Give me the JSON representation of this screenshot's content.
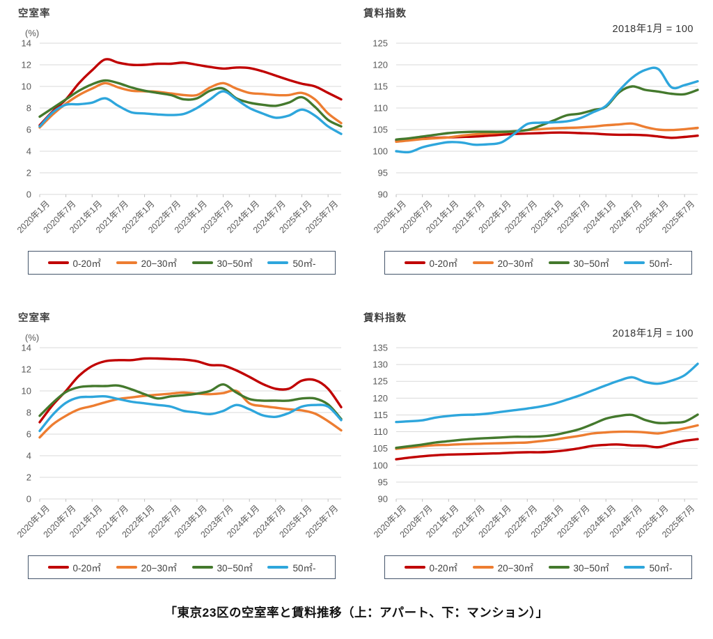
{
  "caption": "「東京23区の空室率と賃料推移（上：アパート、下：マンション）」",
  "colors": {
    "series_red": "#c00000",
    "series_orange": "#ed7d31",
    "series_green": "#44792d",
    "series_blue": "#2ea6dc",
    "gridline": "#d9d9d9",
    "tick": "#bfbfbf",
    "axis_label": "#595959",
    "title": "#3f3f3f",
    "legend_border": "#44546a"
  },
  "legend": {
    "items": [
      {
        "label": "0-20㎡",
        "color": "#c00000"
      },
      {
        "label": "20−30㎡",
        "color": "#ed7d31"
      },
      {
        "label": "30−50㎡",
        "color": "#44792d"
      },
      {
        "label": "50㎡-",
        "color": "#2ea6dc"
      }
    ]
  },
  "x_axis": {
    "domain_months": 69,
    "step_months": 3,
    "tick_interval_months": 6,
    "tick_labels": [
      "2020年1月",
      "2020年7月",
      "2021年1月",
      "2021年7月",
      "2022年1月",
      "2022年7月",
      "2023年1月",
      "2023年7月",
      "2024年1月",
      "2024年7月",
      "2025年1月",
      "2025年7月"
    ]
  },
  "chart_data": [
    {
      "id": "apartment-vacancy",
      "type": "line",
      "title": "空室率",
      "unit_label": "(%)",
      "y_axis": {
        "min": 0,
        "max": 14,
        "ticks": [
          14,
          12,
          10,
          8,
          6,
          4,
          2,
          0
        ]
      },
      "series": [
        {
          "name": "0-20㎡",
          "color": "#c00000",
          "values": [
            6.4,
            7.7,
            8.8,
            10.3,
            11.5,
            12.5,
            12.2,
            12.0,
            12.0,
            12.1,
            12.1,
            12.2,
            12.0,
            11.8,
            11.65,
            11.75,
            11.7,
            11.4,
            11.0,
            10.6,
            10.25,
            10.0,
            9.4,
            8.8
          ]
        },
        {
          "name": "20−30㎡",
          "color": "#ed7d31",
          "values": [
            6.2,
            7.4,
            8.4,
            9.2,
            9.8,
            10.3,
            9.9,
            9.6,
            9.55,
            9.5,
            9.35,
            9.2,
            9.2,
            9.9,
            10.3,
            9.8,
            9.4,
            9.3,
            9.2,
            9.2,
            9.4,
            8.8,
            7.5,
            6.6
          ]
        },
        {
          "name": "30−50㎡",
          "color": "#44792d",
          "values": [
            7.2,
            8.0,
            8.8,
            9.6,
            10.2,
            10.55,
            10.3,
            9.9,
            9.6,
            9.4,
            9.2,
            8.8,
            8.9,
            9.6,
            9.8,
            8.9,
            8.5,
            8.3,
            8.2,
            8.5,
            9.0,
            8.1,
            6.9,
            6.3
          ]
        },
        {
          "name": "50㎡-",
          "color": "#2ea6dc",
          "values": [
            6.3,
            7.6,
            8.3,
            8.35,
            8.5,
            8.9,
            8.2,
            7.6,
            7.5,
            7.4,
            7.35,
            7.45,
            8.0,
            8.8,
            9.55,
            8.8,
            8.0,
            7.5,
            7.1,
            7.3,
            7.85,
            7.3,
            6.3,
            5.6
          ]
        }
      ]
    },
    {
      "id": "apartment-rent",
      "type": "line",
      "title": "賃料指数",
      "annotation": "2018年1月 = 100",
      "y_axis": {
        "min": 90,
        "max": 125,
        "ticks": [
          125,
          120,
          115,
          110,
          105,
          100,
          95,
          90
        ]
      },
      "series": [
        {
          "name": "0-20㎡",
          "color": "#c00000",
          "values": [
            102.5,
            102.7,
            102.9,
            103.1,
            103.2,
            103.3,
            103.4,
            103.6,
            103.8,
            104.0,
            104.1,
            104.2,
            104.3,
            104.3,
            104.2,
            104.1,
            103.9,
            103.8,
            103.8,
            103.7,
            103.4,
            103.1,
            103.3,
            103.6
          ]
        },
        {
          "name": "20−30㎡",
          "color": "#ed7d31",
          "values": [
            102.2,
            102.5,
            102.8,
            103.0,
            103.2,
            103.6,
            103.9,
            104.1,
            104.3,
            104.6,
            104.9,
            105.1,
            105.3,
            105.4,
            105.5,
            105.7,
            106.0,
            106.2,
            106.4,
            105.6,
            105.0,
            104.9,
            105.1,
            105.4
          ]
        },
        {
          "name": "30−50㎡",
          "color": "#44792d",
          "values": [
            102.7,
            103.0,
            103.4,
            103.8,
            104.2,
            104.4,
            104.5,
            104.5,
            104.5,
            104.6,
            104.9,
            105.9,
            107.1,
            108.3,
            108.7,
            109.5,
            110.3,
            113.6,
            115.0,
            114.2,
            113.8,
            113.3,
            113.2,
            114.2
          ]
        },
        {
          "name": "50㎡-",
          "color": "#2ea6dc",
          "values": [
            100.0,
            99.8,
            100.9,
            101.6,
            102.1,
            102.0,
            101.5,
            101.6,
            102.0,
            104.0,
            106.3,
            106.6,
            106.7,
            106.9,
            107.6,
            109.0,
            110.5,
            114.0,
            117.0,
            118.8,
            119.0,
            114.8,
            115.3,
            116.2
          ]
        }
      ]
    },
    {
      "id": "mansion-vacancy",
      "type": "line",
      "title": "空室率",
      "unit_label": "(%)",
      "y_axis": {
        "min": 0,
        "max": 14,
        "ticks": [
          14,
          12,
          10,
          8,
          6,
          4,
          2,
          0
        ]
      },
      "series": [
        {
          "name": "0-20㎡",
          "color": "#c00000",
          "values": [
            7.1,
            8.7,
            10.0,
            11.4,
            12.3,
            12.75,
            12.85,
            12.85,
            13.0,
            13.0,
            12.95,
            12.9,
            12.75,
            12.4,
            12.35,
            11.9,
            11.3,
            10.65,
            10.2,
            10.2,
            10.95,
            11.0,
            10.2,
            8.5
          ]
        },
        {
          "name": "20−30㎡",
          "color": "#ed7d31",
          "values": [
            5.7,
            6.9,
            7.7,
            8.3,
            8.6,
            8.95,
            9.25,
            9.4,
            9.55,
            9.65,
            9.75,
            9.85,
            9.75,
            9.7,
            9.8,
            10.0,
            8.85,
            8.6,
            8.45,
            8.3,
            8.2,
            7.9,
            7.2,
            6.35
          ]
        },
        {
          "name": "30−50㎡",
          "color": "#44792d",
          "values": [
            7.7,
            8.9,
            9.9,
            10.35,
            10.45,
            10.45,
            10.5,
            10.15,
            9.7,
            9.3,
            9.5,
            9.6,
            9.75,
            10.0,
            10.6,
            9.85,
            9.25,
            9.1,
            9.1,
            9.1,
            9.3,
            9.3,
            8.75,
            7.4
          ]
        },
        {
          "name": "50㎡-",
          "color": "#2ea6dc",
          "values": [
            6.3,
            7.8,
            8.9,
            9.4,
            9.45,
            9.5,
            9.25,
            9.0,
            8.85,
            8.7,
            8.55,
            8.15,
            8.0,
            7.85,
            8.15,
            8.7,
            8.3,
            7.75,
            7.6,
            7.95,
            8.55,
            8.7,
            8.55,
            7.3
          ]
        }
      ]
    },
    {
      "id": "mansion-rent",
      "type": "line",
      "title": "賃料指数",
      "annotation": "2018年1月 = 100",
      "y_axis": {
        "min": 90,
        "max": 135,
        "ticks": [
          135,
          130,
          125,
          120,
          115,
          110,
          105,
          100,
          95,
          90
        ]
      },
      "series": [
        {
          "name": "0-20㎡",
          "color": "#c00000",
          "values": [
            101.8,
            102.3,
            102.7,
            103.0,
            103.2,
            103.3,
            103.4,
            103.5,
            103.6,
            103.8,
            103.9,
            103.9,
            104.1,
            104.5,
            105.1,
            105.8,
            106.1,
            106.2,
            105.9,
            105.8,
            105.4,
            106.4,
            107.3,
            107.8
          ]
        },
        {
          "name": "20−30㎡",
          "color": "#ed7d31",
          "values": [
            104.9,
            105.3,
            105.7,
            106.0,
            106.1,
            106.3,
            106.4,
            106.5,
            106.6,
            106.7,
            106.8,
            107.2,
            107.6,
            108.2,
            108.8,
            109.5,
            109.8,
            110.0,
            110.0,
            109.8,
            109.5,
            110.2,
            111.0,
            111.9
          ]
        },
        {
          "name": "30−50㎡",
          "color": "#44792d",
          "values": [
            105.2,
            105.7,
            106.2,
            106.8,
            107.2,
            107.6,
            107.9,
            108.1,
            108.3,
            108.5,
            108.5,
            108.6,
            109.0,
            109.8,
            110.8,
            112.3,
            113.9,
            114.7,
            115.0,
            113.5,
            112.6,
            112.7,
            113.0,
            115.1
          ]
        },
        {
          "name": "50㎡-",
          "color": "#2ea6dc",
          "values": [
            112.9,
            113.1,
            113.4,
            114.2,
            114.7,
            115.0,
            115.1,
            115.4,
            115.9,
            116.4,
            116.9,
            117.5,
            118.3,
            119.5,
            120.8,
            122.3,
            123.8,
            125.2,
            126.2,
            124.8,
            124.3,
            125.2,
            126.8,
            130.2
          ]
        }
      ]
    }
  ]
}
